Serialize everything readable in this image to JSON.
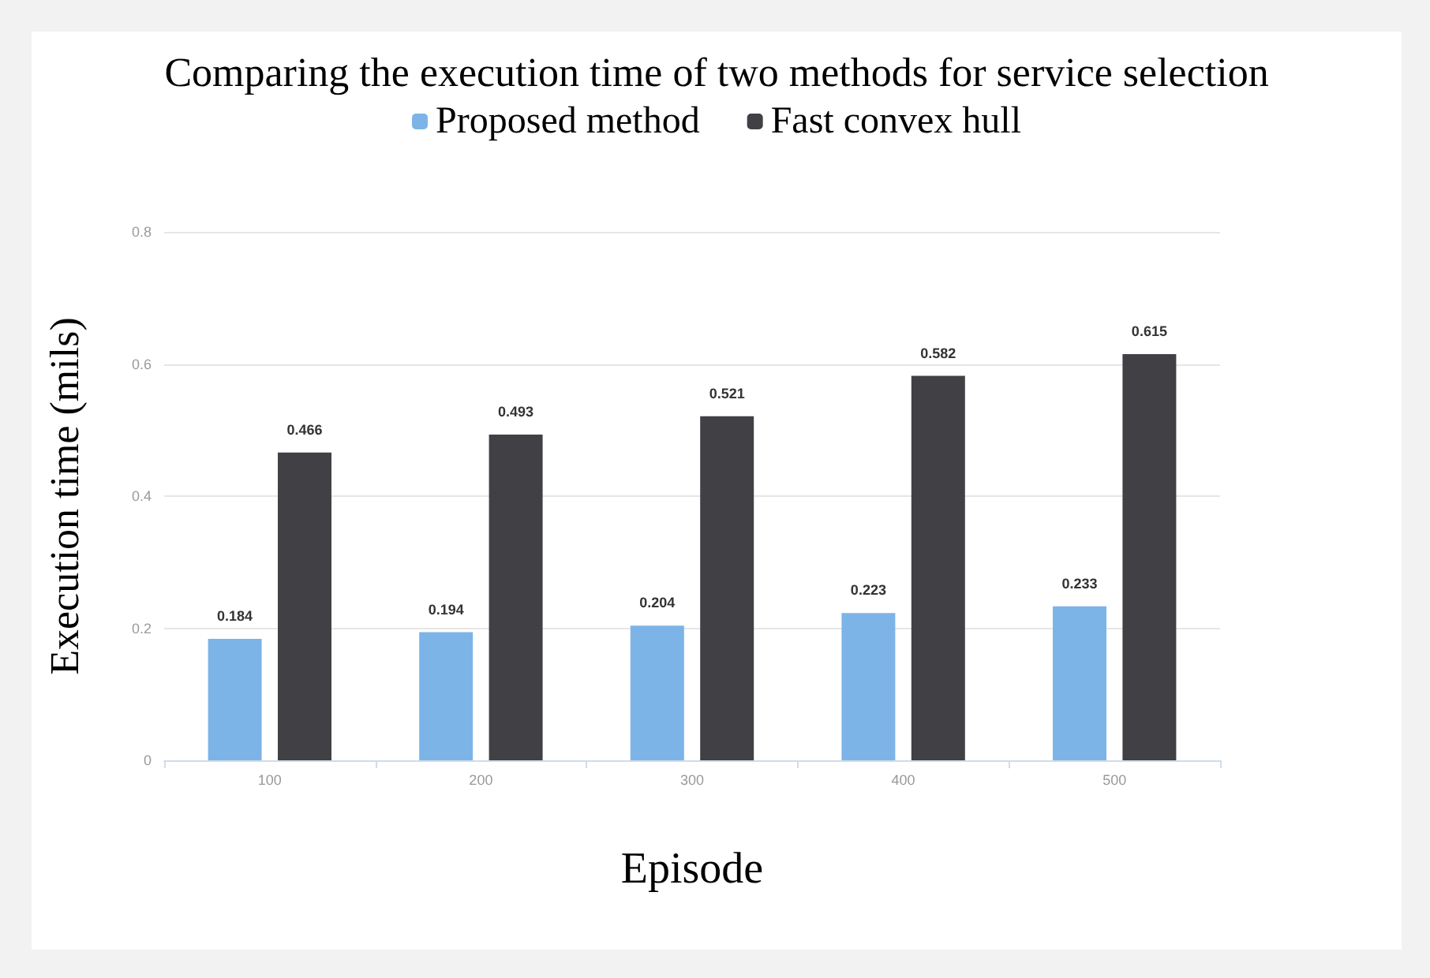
{
  "chart_data": {
    "type": "bar",
    "title": "Comparing the execution time of two methods for service selection",
    "xlabel": "Episode",
    "ylabel": "Execution time (mils)",
    "categories": [
      "100",
      "200",
      "300",
      "400",
      "500"
    ],
    "series": [
      {
        "name": "Proposed method",
        "color": "#7cb4e8",
        "values": [
          0.184,
          0.194,
          0.204,
          0.223,
          0.233
        ]
      },
      {
        "name": "Fast convex hull",
        "color": "#414045",
        "values": [
          0.466,
          0.493,
          0.521,
          0.582,
          0.615
        ]
      }
    ],
    "ylim": [
      0,
      0.8
    ],
    "yticks": [
      0,
      0.2,
      0.4,
      0.6,
      0.8
    ],
    "grid": "y",
    "legend": "top",
    "data_labels": true
  }
}
